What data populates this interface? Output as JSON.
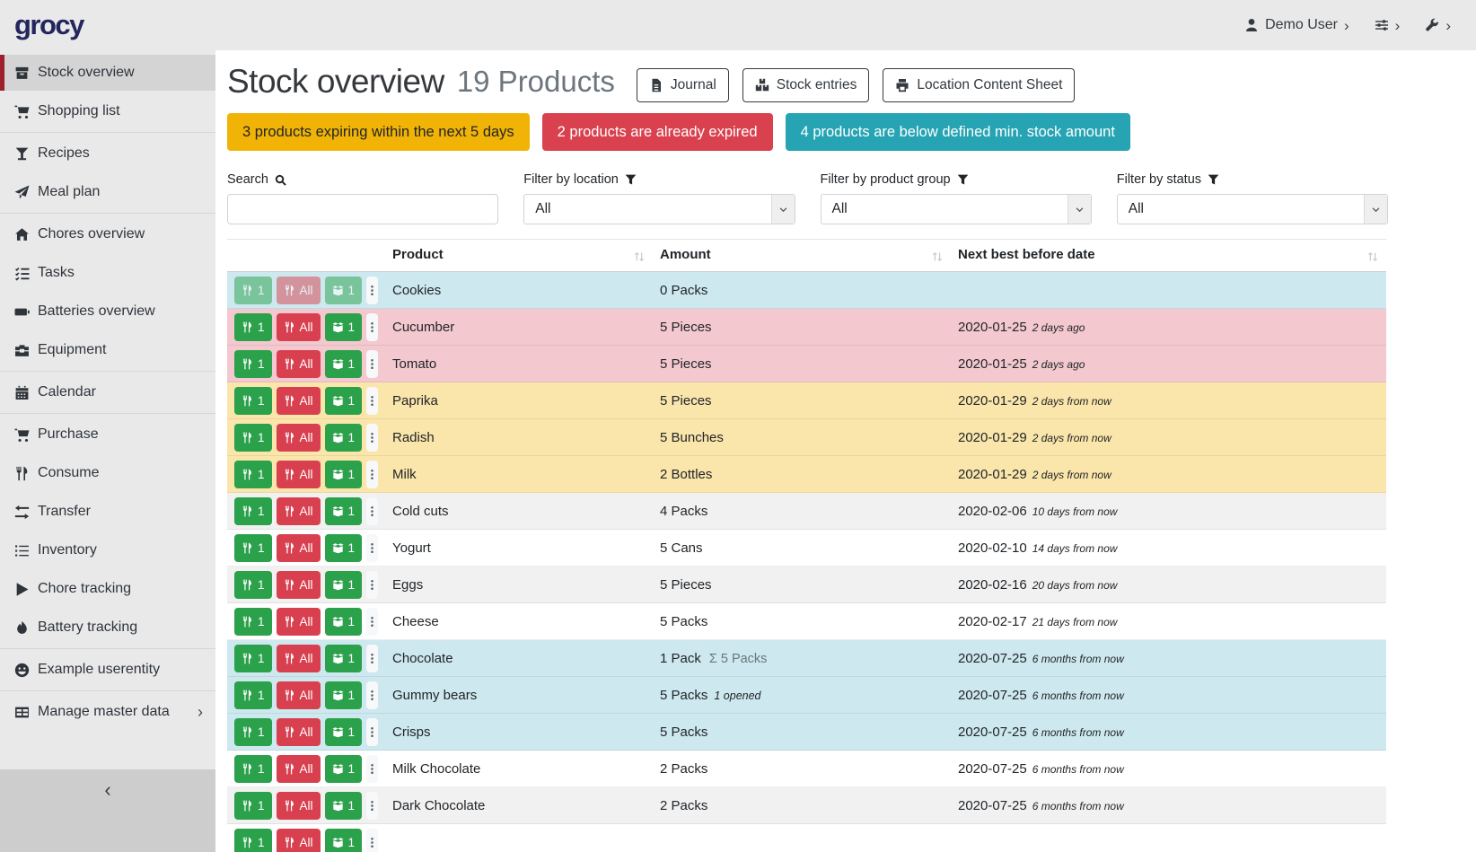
{
  "topbar": {
    "logo": "grocy",
    "user_label": "Demo User",
    "chevron": "›"
  },
  "sidebar": {
    "items": [
      {
        "label": "Stock overview",
        "icon": "box",
        "active": true
      },
      {
        "label": "Shopping list",
        "icon": "cart"
      },
      {
        "label": "Recipes",
        "icon": "cocktail",
        "divider_before": true
      },
      {
        "label": "Meal plan",
        "icon": "paper-plane"
      },
      {
        "label": "Chores overview",
        "icon": "home",
        "divider_before": true
      },
      {
        "label": "Tasks",
        "icon": "list-check"
      },
      {
        "label": "Batteries overview",
        "icon": "battery"
      },
      {
        "label": "Equipment",
        "icon": "toolbox"
      },
      {
        "label": "Calendar",
        "icon": "calendar",
        "divider_before": true
      },
      {
        "label": "Purchase",
        "icon": "cart",
        "divider_before": true
      },
      {
        "label": "Consume",
        "icon": "utensils"
      },
      {
        "label": "Transfer",
        "icon": "transfer"
      },
      {
        "label": "Inventory",
        "icon": "list"
      },
      {
        "label": "Chore tracking",
        "icon": "play"
      },
      {
        "label": "Battery tracking",
        "icon": "fire"
      },
      {
        "label": "Example userentity",
        "icon": "smiley",
        "divider_before": true
      },
      {
        "label": "Manage master data",
        "icon": "table",
        "divider_before": true,
        "has_submenu": true,
        "submenu_chevron": "›"
      }
    ],
    "collapse_label": "‹"
  },
  "header": {
    "title": "Stock overview",
    "subtitle": "19 Products",
    "buttons": [
      {
        "label": "Journal",
        "icon": "file"
      },
      {
        "label": "Stock entries",
        "icon": "boxes"
      },
      {
        "label": "Location Content Sheet",
        "icon": "print"
      }
    ]
  },
  "alerts": [
    {
      "text": "3 products expiring within the next 5 days",
      "type": "warning"
    },
    {
      "text": "2 products are already expired",
      "type": "danger"
    },
    {
      "text": "4 products are below defined min. stock amount",
      "type": "info"
    }
  ],
  "filters": {
    "search_label": "Search",
    "search_value": "",
    "selects": [
      {
        "label": "Filter by location",
        "value": "All"
      },
      {
        "label": "Filter by product group",
        "value": "All"
      },
      {
        "label": "Filter by status",
        "value": "All"
      }
    ]
  },
  "table": {
    "columns": [
      {
        "label": "Product"
      },
      {
        "label": "Amount"
      },
      {
        "label": "Next best before date"
      }
    ],
    "row_actions": {
      "consume_one": "1",
      "consume_all": "All",
      "open_one": "1"
    },
    "rows": [
      {
        "product": "Cookies",
        "amount": "0 Packs",
        "date": "",
        "relative": "",
        "status": "info",
        "muted_actions": true
      },
      {
        "product": "Cucumber",
        "amount": "5 Pieces",
        "date": "2020-01-25",
        "relative": "2 days ago",
        "status": "danger"
      },
      {
        "product": "Tomato",
        "amount": "5 Pieces",
        "date": "2020-01-25",
        "relative": "2 days ago",
        "status": "danger"
      },
      {
        "product": "Paprika",
        "amount": "5 Pieces",
        "date": "2020-01-29",
        "relative": "2 days from now",
        "status": "warning"
      },
      {
        "product": "Radish",
        "amount": "5 Bunches",
        "date": "2020-01-29",
        "relative": "2 days from now",
        "status": "warning"
      },
      {
        "product": "Milk",
        "amount": "2 Bottles",
        "date": "2020-01-29",
        "relative": "2 days from now",
        "status": "warning"
      },
      {
        "product": "Cold cuts",
        "amount": "4 Packs",
        "date": "2020-02-06",
        "relative": "10 days from now",
        "status": "none"
      },
      {
        "product": "Yogurt",
        "amount": "5 Cans",
        "date": "2020-02-10",
        "relative": "14 days from now",
        "status": "none"
      },
      {
        "product": "Eggs",
        "amount": "5 Pieces",
        "date": "2020-02-16",
        "relative": "20 days from now",
        "status": "none"
      },
      {
        "product": "Cheese",
        "amount": "5 Packs",
        "date": "2020-02-17",
        "relative": "21 days from now",
        "status": "none"
      },
      {
        "product": "Chocolate",
        "amount": "1 Pack",
        "amount_extra": "Σ 5 Packs",
        "extra_style": "sum",
        "date": "2020-07-25",
        "relative": "6 months from now",
        "status": "info"
      },
      {
        "product": "Gummy bears",
        "amount": "5 Packs",
        "amount_extra": "1 opened",
        "extra_style": "opened",
        "date": "2020-07-25",
        "relative": "6 months from now",
        "status": "info"
      },
      {
        "product": "Crisps",
        "amount": "5 Packs",
        "date": "2020-07-25",
        "relative": "6 months from now",
        "status": "info"
      },
      {
        "product": "Milk Chocolate",
        "amount": "2 Packs",
        "date": "2020-07-25",
        "relative": "6 months from now",
        "status": "none"
      },
      {
        "product": "Dark Chocolate",
        "amount": "2 Packs",
        "date": "2020-07-25",
        "relative": "6 months from now",
        "status": "none"
      },
      {
        "product": "",
        "amount": "",
        "date": "",
        "relative": "",
        "status": "none",
        "partial": true
      }
    ]
  },
  "colors": {
    "topbar_bg": "#e9e9e9",
    "sidebar_active_bg": "#d4d4d4",
    "accent_red": "#9e202b",
    "logo_navy": "#23265e",
    "alert_warning": "#f1b305",
    "alert_danger": "#d9414e",
    "alert_info": "#26a4b3",
    "row_warning": "#fae5aa",
    "row_danger": "#f3c8ce",
    "row_info": "#cde8ee",
    "button_green": "#2aa14a",
    "button_red": "#d9404f"
  }
}
